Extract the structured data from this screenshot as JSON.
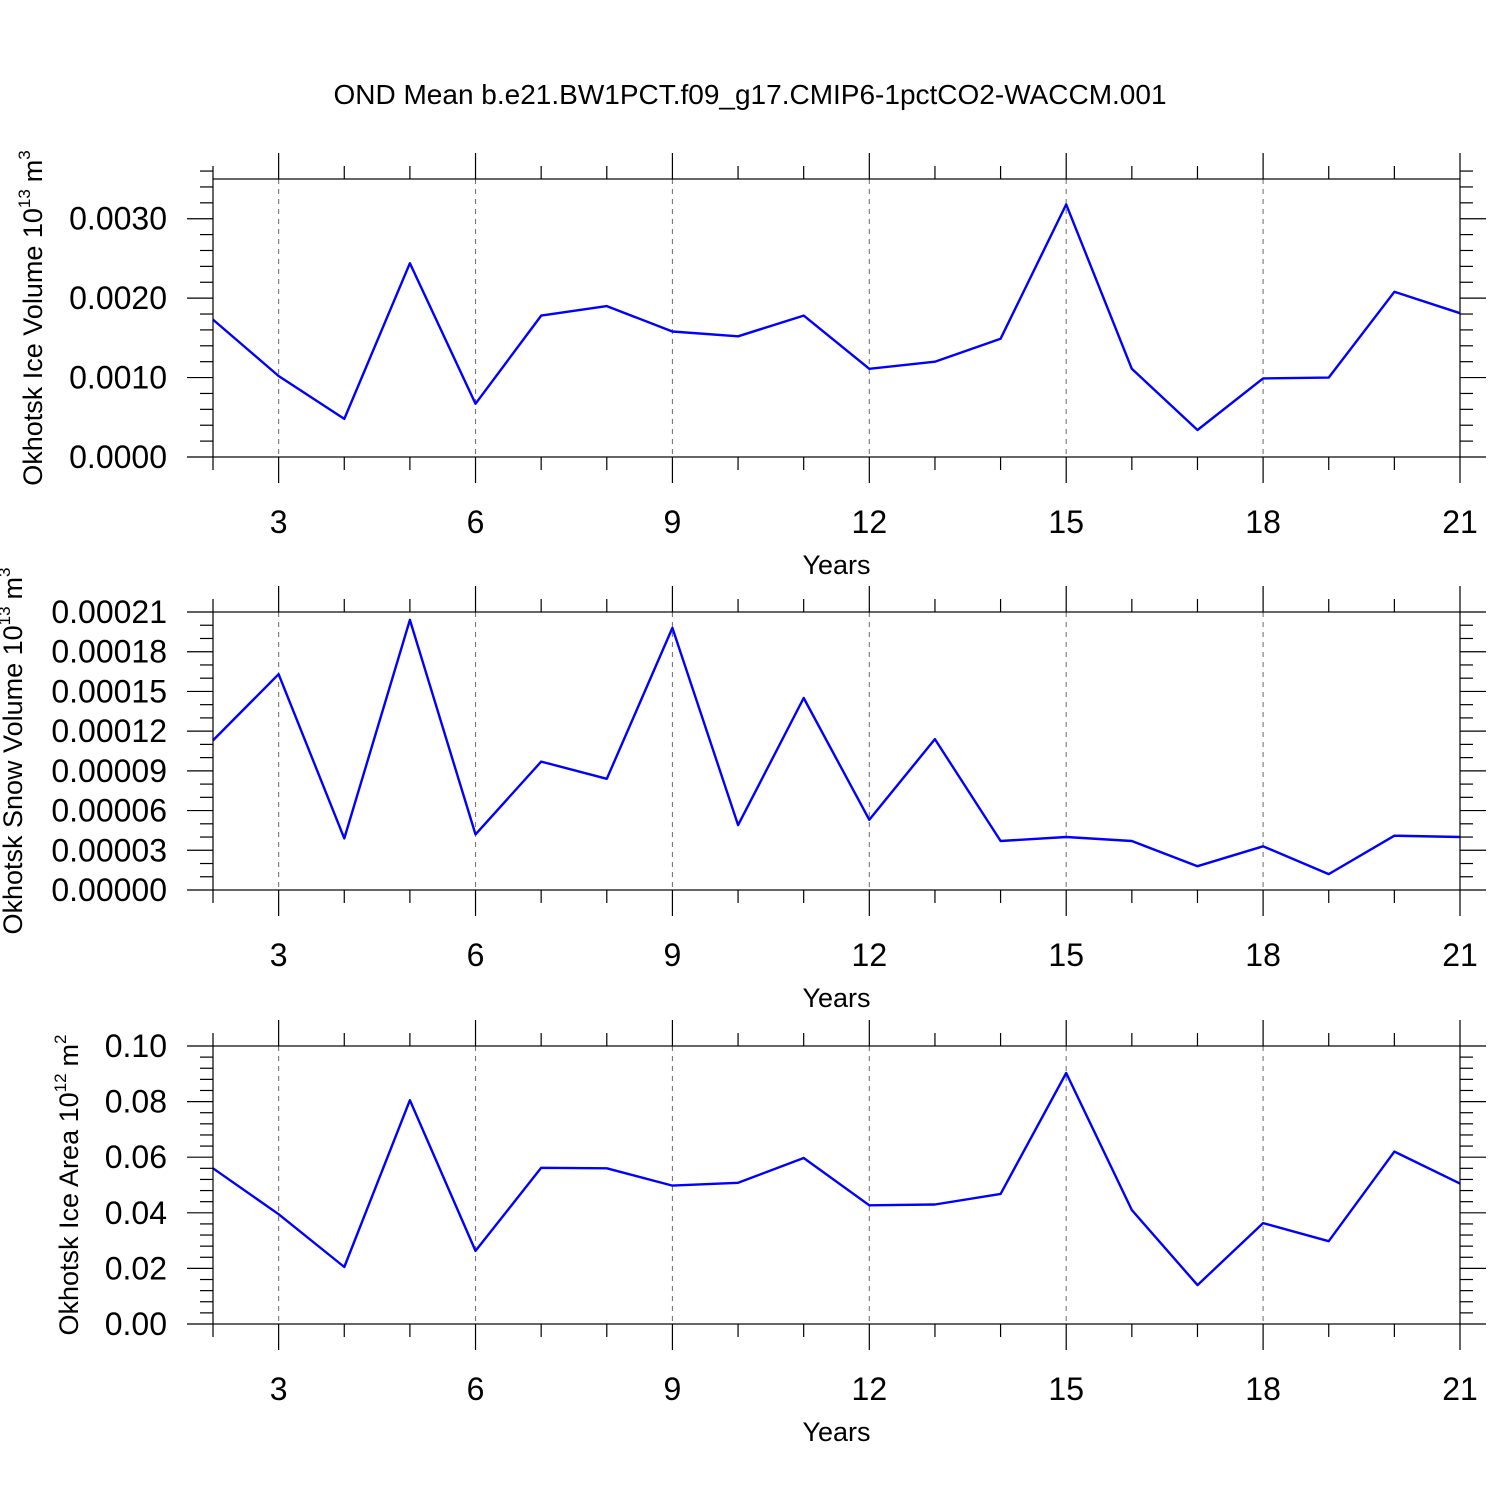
{
  "title": "OND Mean b.e21.BW1PCT.f09_g17.CMIP6-1pctCO2-WACCM.001",
  "colors": {
    "series": "#0000ff",
    "axes": "#000000",
    "grid": "#777777"
  },
  "chart_data": [
    {
      "type": "line",
      "title": "",
      "xlabel": "Years",
      "ylabel": "Okhotsk Ice Volume 10",
      "ylabel_exp": "13",
      "ylabel_unit": "m",
      "ylabel_unit_exp": "3",
      "xlim": [
        2,
        21
      ],
      "ylim": [
        0,
        0.0035
      ],
      "x_ticks": [
        3,
        6,
        9,
        12,
        15,
        18,
        21
      ],
      "x_tick_labels": [
        "3",
        "6",
        "9",
        "12",
        "15",
        "18",
        "21"
      ],
      "y_ticks": [
        0,
        0.001,
        0.002,
        0.003
      ],
      "y_tick_labels": [
        "0.0000",
        "0.0010",
        "0.0020",
        "0.0030"
      ],
      "y_minor_step": 0.0002,
      "grid": "x-major-dashed",
      "x": [
        2,
        3,
        4,
        5,
        6,
        7,
        8,
        9,
        10,
        11,
        12,
        13,
        14,
        15,
        16,
        17,
        18,
        19,
        20,
        21
      ],
      "series": [
        {
          "values": [
            0.00173,
            0.00102,
            0.00048,
            0.00244,
            0.00067,
            0.00178,
            0.0019,
            0.00158,
            0.00152,
            0.00178,
            0.00111,
            0.0012,
            0.00149,
            0.00318,
            0.00111,
            0.00034,
            0.00099,
            0.001,
            0.00208,
            0.00181
          ]
        }
      ]
    },
    {
      "type": "line",
      "title": "",
      "xlabel": "Years",
      "ylabel": "Okhotsk Snow Volume 10",
      "ylabel_exp": "13",
      "ylabel_unit": "m",
      "ylabel_unit_exp": "3",
      "xlim": [
        2,
        21
      ],
      "ylim": [
        0,
        0.00021
      ],
      "x_ticks": [
        3,
        6,
        9,
        12,
        15,
        18,
        21
      ],
      "x_tick_labels": [
        "3",
        "6",
        "9",
        "12",
        "15",
        "18",
        "21"
      ],
      "y_ticks": [
        0,
        3e-05,
        6e-05,
        9e-05,
        0.00012,
        0.00015,
        0.00018,
        0.00021
      ],
      "y_tick_labels": [
        "0.00000",
        "0.00003",
        "0.00006",
        "0.00009",
        "0.00012",
        "0.00015",
        "0.00018",
        "0.00021"
      ],
      "y_minor_step": 1e-05,
      "grid": "x-major-dashed",
      "x": [
        2,
        3,
        4,
        5,
        6,
        7,
        8,
        9,
        10,
        11,
        12,
        13,
        14,
        15,
        16,
        17,
        18,
        19,
        20,
        21
      ],
      "series": [
        {
          "values": [
            0.000113,
            0.000163,
            3.9e-05,
            0.000204,
            4.2e-05,
            9.7e-05,
            8.4e-05,
            0.000198,
            4.9e-05,
            0.000145,
            5.3e-05,
            0.000114,
            3.7e-05,
            4e-05,
            3.7e-05,
            1.8e-05,
            3.3e-05,
            1.2e-05,
            4.1e-05,
            4e-05
          ]
        }
      ]
    },
    {
      "type": "line",
      "title": "",
      "xlabel": "Years",
      "ylabel": "Okhotsk Ice Area 10",
      "ylabel_exp": "12",
      "ylabel_unit": "m",
      "ylabel_unit_exp": "2",
      "xlim": [
        2,
        21
      ],
      "ylim": [
        0,
        0.1
      ],
      "x_ticks": [
        3,
        6,
        9,
        12,
        15,
        18,
        21
      ],
      "x_tick_labels": [
        "3",
        "6",
        "9",
        "12",
        "15",
        "18",
        "21"
      ],
      "y_ticks": [
        0,
        0.02,
        0.04,
        0.06,
        0.08,
        0.1
      ],
      "y_tick_labels": [
        "0.00",
        "0.02",
        "0.04",
        "0.06",
        "0.08",
        "0.10"
      ],
      "y_minor_step": 0.004,
      "grid": "x-major-dashed",
      "x": [
        2,
        3,
        4,
        5,
        6,
        7,
        8,
        9,
        10,
        11,
        12,
        13,
        14,
        15,
        16,
        17,
        18,
        19,
        20,
        21
      ],
      "series": [
        {
          "values": [
            0.056,
            0.0395,
            0.0205,
            0.0805,
            0.0263,
            0.0562,
            0.056,
            0.0498,
            0.0508,
            0.0597,
            0.0427,
            0.043,
            0.0468,
            0.0903,
            0.041,
            0.014,
            0.0363,
            0.0298,
            0.062,
            0.0505
          ]
        }
      ]
    }
  ]
}
